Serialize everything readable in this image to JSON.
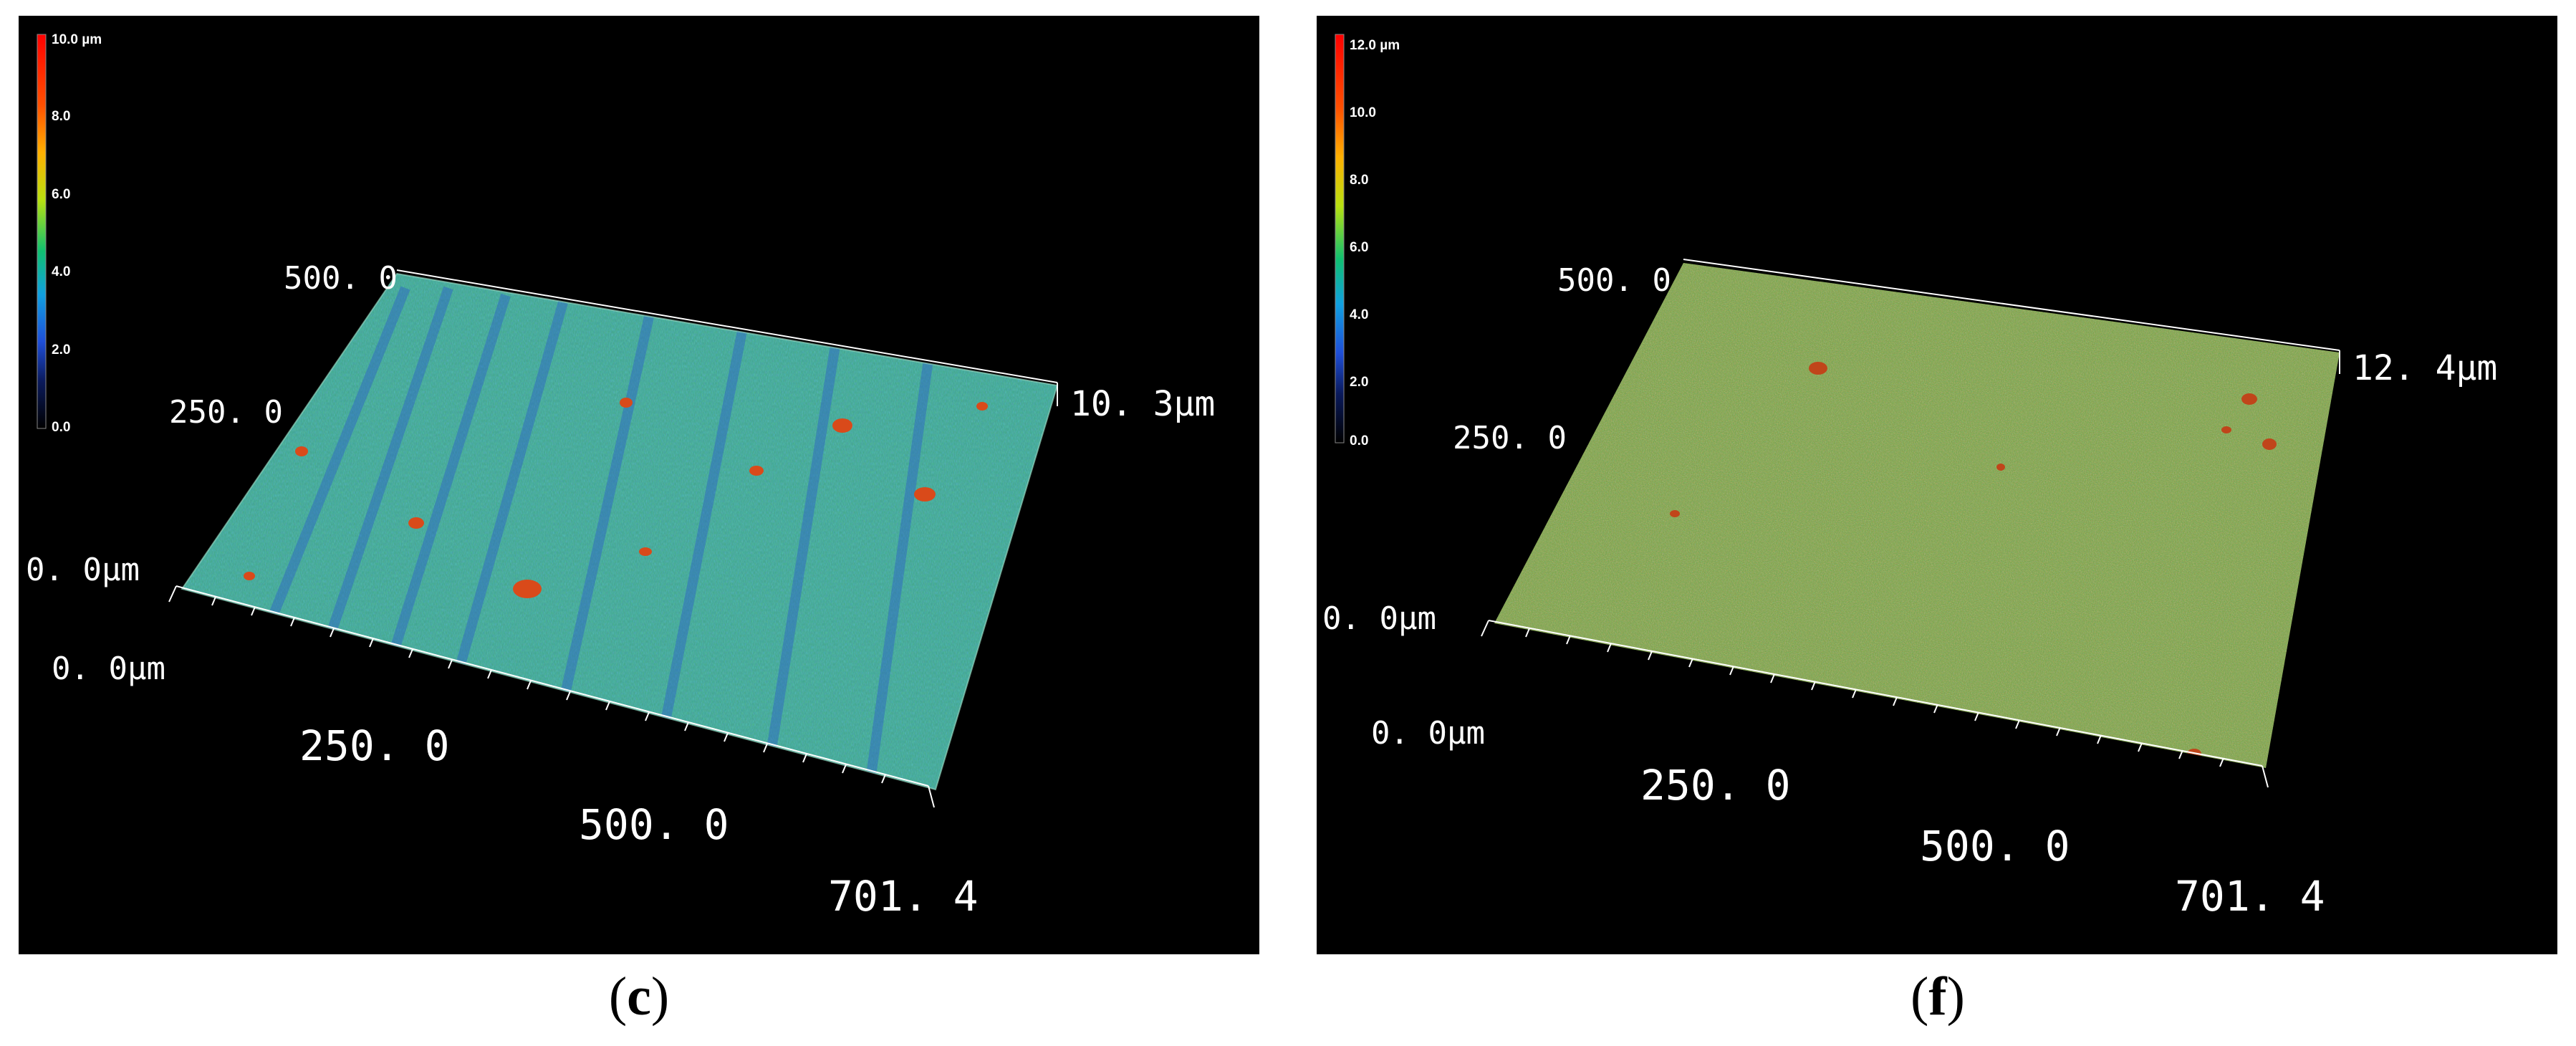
{
  "colors": {
    "background": "#000000",
    "surface_c_base": "#3fa58c",
    "surface_f_base": "#7aa043",
    "scale_stops": [
      "#000000",
      "#0a1a5c",
      "#1f4fd8",
      "#10a0e0",
      "#10c070",
      "#b8e010",
      "#ffb000",
      "#ff5000",
      "#ff0000"
    ]
  },
  "panels": [
    {
      "caption_letter": "c",
      "colorbar": [
        "10.0 µm",
        "8.0",
        "6.0",
        "4.0",
        "2.0",
        "0.0"
      ],
      "y_axis": [
        "500. 0",
        "250. 0",
        "0. 0μm"
      ],
      "z_max": "10. 3μm",
      "x_axis": [
        "0. 0μm",
        "250. 0",
        "500. 0",
        "701. 4"
      ]
    },
    {
      "caption_letter": "f",
      "colorbar": [
        "12.0 µm",
        "10.0",
        "8.0",
        "6.0",
        "4.0",
        "2.0",
        "0.0"
      ],
      "y_axis": [
        "500. 0",
        "250. 0",
        "0. 0μm"
      ],
      "z_max": "12. 4μm",
      "x_axis": [
        "0. 0μm",
        "250. 0",
        "500. 0",
        "701. 4"
      ]
    }
  ]
}
